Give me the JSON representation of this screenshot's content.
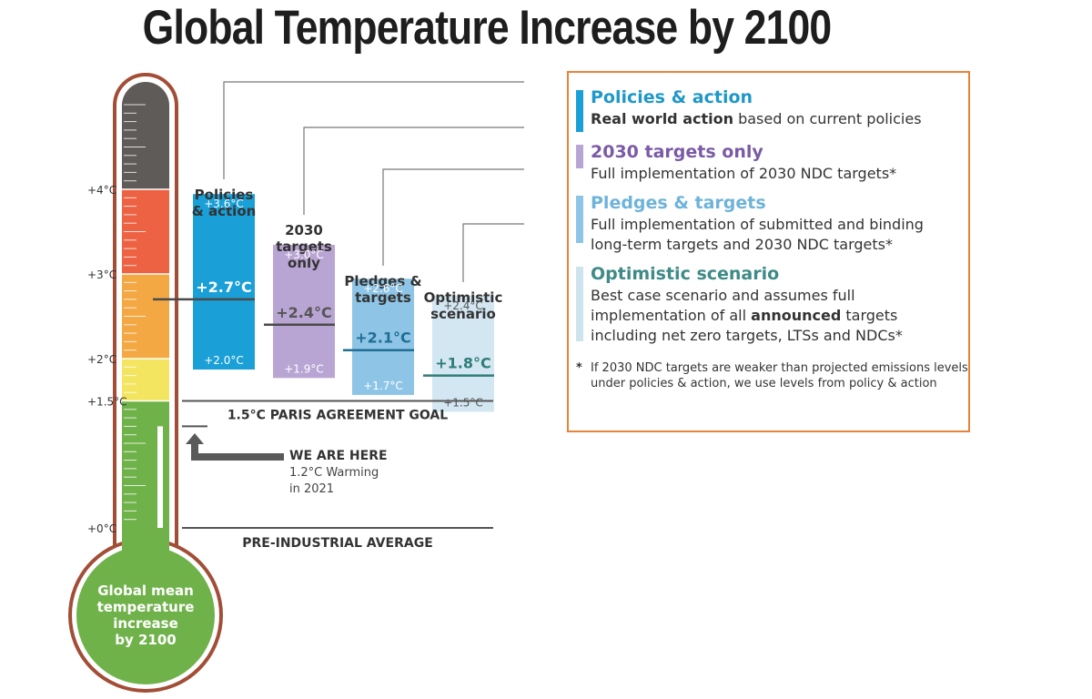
{
  "title": "Global Temperature Increase by 2100",
  "thermometer": {
    "bulb_lines": [
      "Global mean",
      "temperature",
      "increase",
      "by 2100"
    ],
    "scale_labels": [
      {
        "label": "+4°C",
        "value": 4
      },
      {
        "label": "+3°C",
        "value": 3
      },
      {
        "label": "+2°C",
        "value": 2
      },
      {
        "label": "+1.5°C",
        "value": 1.5
      },
      {
        "label": "+0°C",
        "value": 0
      }
    ],
    "colors": {
      "top": "#5f5b58",
      "red": "#ec6243",
      "orange": "#f3a843",
      "yellow": "#f3e55f",
      "green": "#70b24a",
      "outline": "#a24e37"
    }
  },
  "scenarios": [
    {
      "name": "Policies & action",
      "label_lines": [
        "Policies",
        "& action"
      ],
      "central": 2.7,
      "low": 2.0,
      "high": 3.6,
      "central_label": "+2.7°C",
      "low_label": "+2.0°C",
      "high_label": "+3.6°C",
      "color": "#1a9fd6"
    },
    {
      "name": "2030 targets only",
      "label_lines": [
        "2030",
        "targets",
        "only"
      ],
      "central": 2.4,
      "low": 1.9,
      "high": 3.0,
      "central_label": "+2.4°C",
      "low_label": "+1.9°C",
      "high_label": "+3.0°C",
      "color": "#b9a5d3"
    },
    {
      "name": "Pledges & targets",
      "label_lines": [
        "Pledges &",
        "targets"
      ],
      "central": 2.1,
      "low": 1.7,
      "high": 2.6,
      "central_label": "+2.1°C",
      "low_label": "+1.7°C",
      "high_label": "+2.6°C",
      "color": "#8ec5e6"
    },
    {
      "name": "Optimistic scenario",
      "label_lines": [
        "Optimistic",
        "scenario"
      ],
      "central": 1.8,
      "low": 1.5,
      "high": 2.4,
      "central_label": "+1.8°C",
      "low_label": "+1.5°C",
      "high_label": "+2.4°C",
      "color": "#d3e7f2"
    }
  ],
  "reference_lines": {
    "paris_goal": "1.5°C PARIS AGREEMENT GOAL",
    "pre_industrial": "PRE-INDUSTRIAL AVERAGE"
  },
  "we_are_here": {
    "title": "WE ARE HERE",
    "line1": "1.2°C Warming",
    "line2": "in 2021",
    "value": 1.2
  },
  "legend": {
    "items": [
      {
        "title": "Policies & action",
        "title_color": "#1f98c9",
        "bar_color": "#1a9fd6",
        "lines": [
          [
            {
              "text": "Real world action",
              "bold": true
            },
            {
              "text": " based on current policies",
              "bold": false
            }
          ]
        ]
      },
      {
        "title": "2030 targets only",
        "title_color": "#7a5aa6",
        "bar_color": "#b9a5d3",
        "lines": [
          [
            {
              "text": "Full implementation of 2030 NDC targets*",
              "bold": false
            }
          ]
        ]
      },
      {
        "title": "Pledges & targets",
        "title_color": "#6eb3da",
        "bar_color": "#8ec5e6",
        "lines": [
          [
            {
              "text": "Full implementation of submitted and binding",
              "bold": false
            }
          ],
          [
            {
              "text": "long-term targets and 2030 NDC targets*",
              "bold": false
            }
          ]
        ]
      },
      {
        "title": "Optimistic scenario",
        "title_color": "#3e8a86",
        "bar_color": "#cfe3ee",
        "lines": [
          [
            {
              "text": "Best case scenario and assumes full",
              "bold": false
            }
          ],
          [
            {
              "text": "implementation of all ",
              "bold": false
            },
            {
              "text": "announced",
              "bold": true
            },
            {
              "text": " targets",
              "bold": false
            }
          ],
          [
            {
              "text": "including net zero targets, LTSs and NDCs*",
              "bold": false
            }
          ]
        ]
      }
    ],
    "note_star": "*",
    "note_lines": [
      "If 2030 NDC targets are weaker than projected emissions levels",
      "under policies & action, we use levels from policy & action"
    ],
    "border_color": "#e8833a"
  }
}
